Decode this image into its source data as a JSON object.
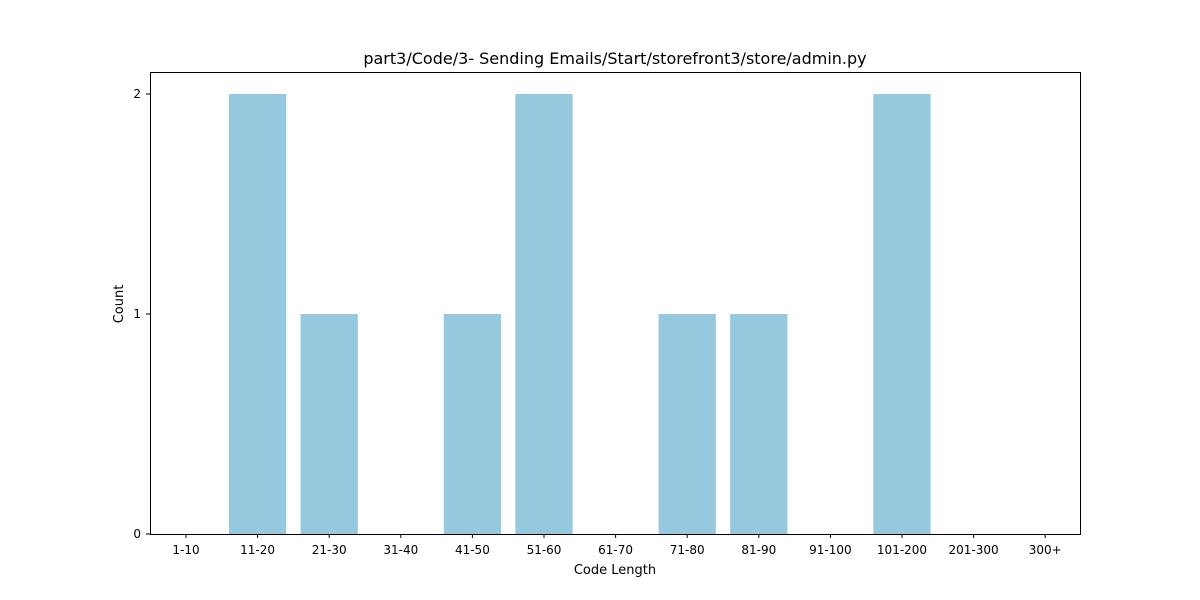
{
  "chart_data": {
    "type": "bar",
    "title": "part3/Code/3- Sending Emails/Start/storefront3/store/admin.py",
    "xlabel": "Code Length",
    "ylabel": "Count",
    "categories": [
      "1-10",
      "11-20",
      "21-30",
      "31-40",
      "41-50",
      "51-60",
      "61-70",
      "71-80",
      "81-90",
      "91-100",
      "101-200",
      "201-300",
      "300+"
    ],
    "values": [
      0,
      2,
      1,
      0,
      1,
      2,
      0,
      1,
      1,
      0,
      2,
      0,
      0
    ],
    "ylim": [
      0,
      2.1
    ],
    "yticks": [
      "0",
      "1",
      "2"
    ],
    "bar_color": "#96c9dd",
    "grid": false,
    "legend": "none"
  }
}
